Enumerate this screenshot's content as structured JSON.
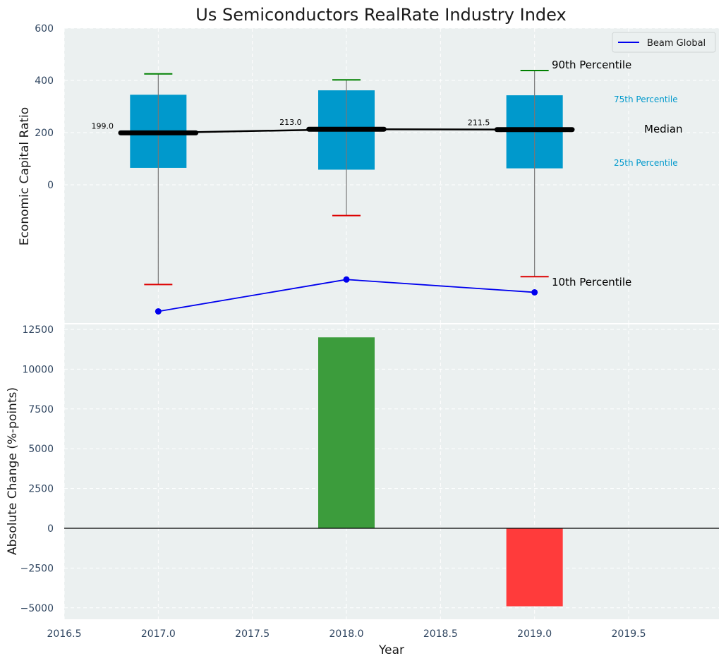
{
  "chart_data": [
    {
      "type": "box",
      "title": "Us Semiconductors RealRate Industry Index",
      "xlabel": "",
      "ylabel": "Economic Capital Ratio",
      "xlim": [
        2016.5,
        2019.98
      ],
      "ylim_top": 600,
      "y_ticks": [
        0,
        200,
        400,
        600
      ],
      "x": [
        2017,
        2018,
        2019
      ],
      "p10": [
        -382,
        -118,
        -352
      ],
      "p25": [
        65,
        58,
        63
      ],
      "median": [
        199,
        213,
        211.5
      ],
      "median_labels": [
        "199.0",
        "213.0",
        "211.5"
      ],
      "p75": [
        345,
        362,
        343
      ],
      "p90": [
        425,
        402,
        438
      ],
      "series": [
        {
          "name": "Beam Global",
          "x": [
            2017,
            2018,
            2019
          ],
          "values": [
            -485,
            -363,
            -412
          ],
          "color": "#0000ee"
        }
      ],
      "annotations": {
        "p90": "90th Percentile",
        "p75": "75th Percentile",
        "median": "Median",
        "p25": "25th Percentile",
        "p10": "10th Percentile"
      },
      "legend": {
        "position": "top-right"
      },
      "colors": {
        "box": "#0099cc",
        "median": "#000000",
        "whisker_top": "#008000",
        "whisker_bottom": "#dd0000",
        "background": "#ebf0f0"
      },
      "grid": true
    },
    {
      "type": "bar",
      "xlabel": "Year",
      "ylabel": "Absolute Change (%-points)",
      "x": [
        2018,
        2019
      ],
      "values": [
        12000,
        -4900
      ],
      "colors": [
        "#3c9c3c",
        "#ff3b3b"
      ],
      "ylim": [
        -5600,
        12800
      ],
      "y_ticks": [
        -5000,
        -2500,
        0,
        2500,
        5000,
        7500,
        10000,
        12500
      ],
      "x_ticks": [
        2016.5,
        2017.0,
        2017.5,
        2018.0,
        2018.5,
        2019.0,
        2019.5
      ],
      "grid": true
    }
  ]
}
